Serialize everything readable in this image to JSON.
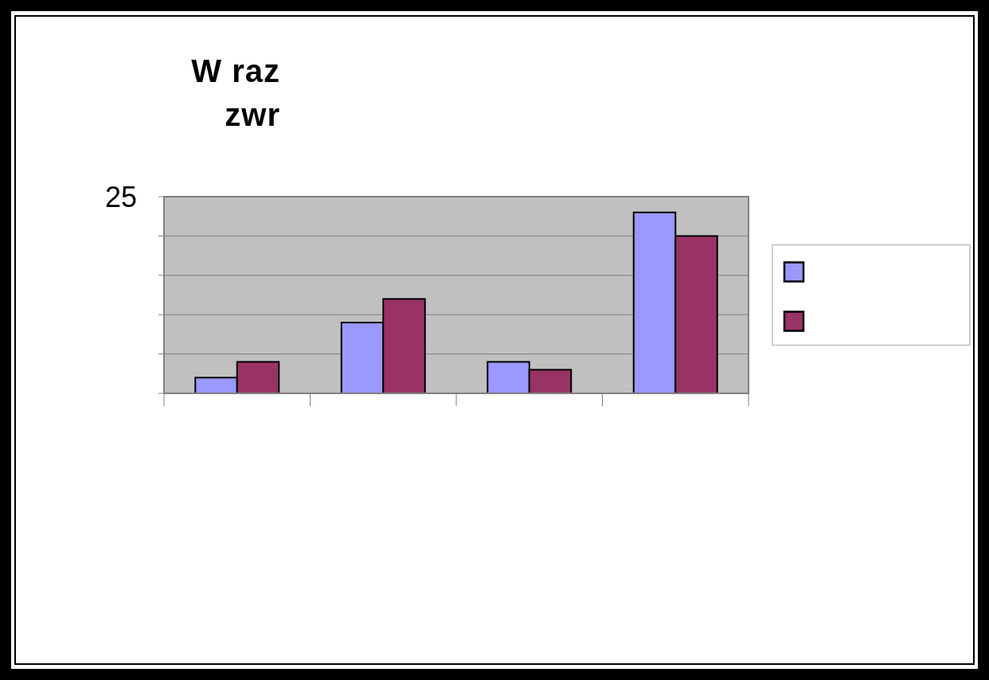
{
  "chart_data": {
    "type": "bar",
    "title": "W raz\nzwr",
    "categories": [
      null,
      null,
      null,
      null
    ],
    "series": [
      {
        "color": "#9999ff",
        "values": [
          2,
          9,
          4,
          23
        ]
      },
      {
        "color": "#993366",
        "values": [
          4,
          12,
          3,
          20
        ]
      }
    ],
    "ylim": [
      0,
      25
    ],
    "yticks": [
      {
        "value": 0,
        "label": null
      },
      {
        "value": 5,
        "label": null
      },
      {
        "value": 10,
        "label": null
      },
      {
        "value": 15,
        "label": null
      },
      {
        "value": 20,
        "label": null
      },
      25
    ],
    "grid": "y"
  }
}
